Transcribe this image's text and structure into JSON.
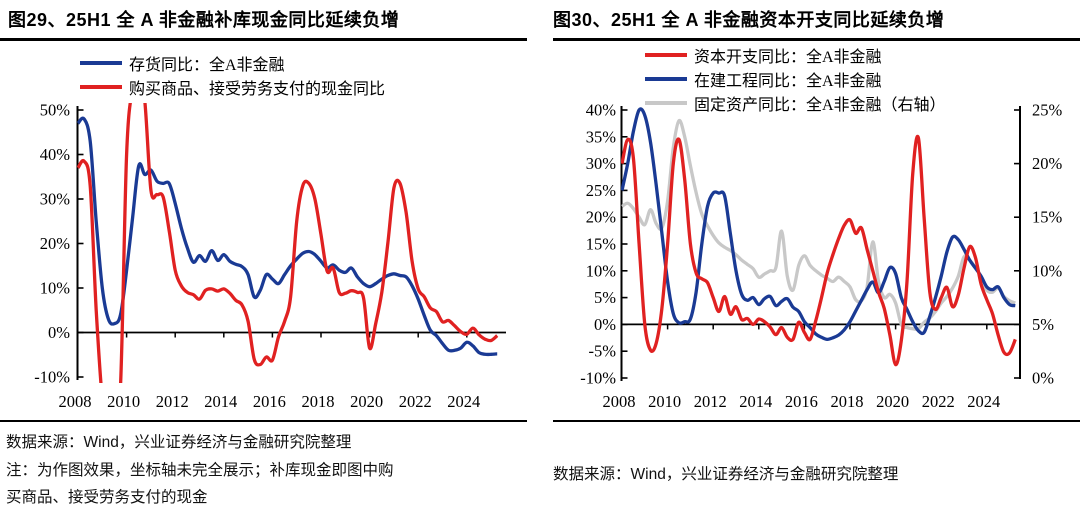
{
  "colors": {
    "blue": "#1a3a94",
    "red": "#e02121",
    "gray": "#c8c8c8",
    "axis": "#000000"
  },
  "panels": [
    {
      "title": "图29、25H1 全 A 非金融补库现金同比延续负增",
      "source_note": "数据来源：Wind，兴业证券经济与金融研究院整理",
      "note_lines": [
        "注：为作图效果，坐标轴未完全展示；补库现金即图中购",
        "买商品、接受劳务支付的现金"
      ]
    },
    {
      "title": "图30、25H1 全 A 非金融资本开支同比延续负增",
      "source_note": "数据来源：Wind，兴业证券经济与金融研究院整理",
      "note_lines": []
    }
  ],
  "chart_data": [
    {
      "type": "line",
      "title": "25H1 全 A 非金融补库现金同比延续负增",
      "x_start": 2008.0,
      "x_step": 0.25,
      "ylim": [
        -10,
        50
      ],
      "ytick_values": [
        50,
        40,
        30,
        20,
        10,
        0,
        -10
      ],
      "ytick_labels": [
        "50%",
        "40%",
        "30%",
        "20%",
        "10%",
        "0%",
        "-10%"
      ],
      "xtick_values": [
        2008,
        2010,
        2012,
        2014,
        2016,
        2018,
        2020,
        2022,
        2024
      ],
      "xtick_labels": [
        "2008",
        "2010",
        "2012",
        "2014",
        "2016",
        "2018",
        "2020",
        "2022",
        "2024"
      ],
      "grid": false,
      "legend_position": "top",
      "note": "红线在2009年低于-10%、2010年高于50%，坐标轴未完全展示（被裁剪）",
      "series": [
        {
          "key": "inventory_yoy",
          "name": "存货同比：全A非金融",
          "color": "#1a3a94",
          "axis": "left",
          "values": [
            47,
            48,
            43,
            25,
            10,
            3,
            2,
            4,
            14,
            26,
            37.5,
            35.5,
            36.5,
            34,
            33.5,
            33.5,
            29,
            23.5,
            19,
            15.8,
            17.3,
            16,
            18.4,
            16.2,
            17.5,
            16,
            15.3,
            14.8,
            13,
            8,
            9.5,
            13,
            12,
            11,
            13,
            15,
            16.5,
            17.8,
            18.2,
            17.5,
            16,
            14.5,
            15.2,
            14,
            13.5,
            14.5,
            12.5,
            11,
            10.3,
            11,
            12,
            12.8,
            13.2,
            12.8,
            12.5,
            10.5,
            7.5,
            3.8,
            0.5,
            -0.7,
            -2.5,
            -4,
            -4,
            -3.5,
            -2.2,
            -3,
            -4.5,
            -4.9,
            -4.9,
            -4.8
          ]
        },
        {
          "key": "cash_paid_yoy",
          "name": "购买商品、接受劳务支付的现金同比",
          "color": "#e02121",
          "axis": "left",
          "values": [
            37,
            38.5,
            33,
            5,
            -15,
            -22,
            -20,
            -12,
            40,
            55,
            58,
            52,
            32,
            31,
            30.5,
            23,
            14,
            10.5,
            9,
            8.5,
            7.5,
            9.5,
            9.8,
            9.3,
            9.8,
            8.8,
            7.2,
            6.2,
            2.5,
            -6,
            -7.2,
            -5.5,
            -6.2,
            -1,
            2.5,
            8,
            25,
            33,
            33.5,
            30,
            22,
            13.8,
            14.5,
            9,
            8.8,
            9.4,
            9,
            7.8,
            -3.5,
            2,
            9,
            20,
            32.5,
            33.5,
            27,
            16,
            9.8,
            8,
            5.5,
            4.7,
            2.4,
            2.7,
            1.5,
            0.2,
            -0.4,
            1,
            -0.5,
            -1.5,
            -1.8,
            -0.7
          ]
        }
      ]
    },
    {
      "type": "line",
      "title": "25H1 全 A 非金融资本开支同比延续负增",
      "x_start": 2008.0,
      "x_step": 0.25,
      "ylim_left": [
        -10,
        40
      ],
      "ylim_right": [
        0,
        25
      ],
      "ytick_values": [
        40,
        35,
        30,
        25,
        20,
        15,
        10,
        5,
        0,
        -5,
        -10
      ],
      "ytick_labels": [
        "40%",
        "35%",
        "30%",
        "25%",
        "20%",
        "15%",
        "10%",
        "5%",
        "0%",
        "-5%",
        "-10%"
      ],
      "ytick_right_values": [
        25,
        20,
        15,
        10,
        5,
        0
      ],
      "ytick_right_labels": [
        "25%",
        "20%",
        "15%",
        "10%",
        "5%",
        "0%"
      ],
      "xtick_values": [
        2008,
        2010,
        2012,
        2014,
        2016,
        2018,
        2020,
        2022,
        2024
      ],
      "xtick_labels": [
        "2008",
        "2010",
        "2012",
        "2014",
        "2016",
        "2018",
        "2020",
        "2022",
        "2024"
      ],
      "grid": false,
      "legend_position": "top",
      "series": [
        {
          "key": "fixed_assets_yoy",
          "name": "固定资产同比：全A非金融（右轴）",
          "color": "#c8c8c8",
          "axis": "right",
          "values": [
            16,
            16.3,
            15.8,
            15,
            14.3,
            15.7,
            14.4,
            14,
            16.5,
            21.5,
            24,
            22.5,
            19.8,
            17.3,
            15.3,
            14.2,
            13.3,
            12.6,
            12.2,
            11.9,
            11.5,
            11,
            10.6,
            10.2,
            9.4,
            9.7,
            10,
            10.3,
            13.7,
            9.5,
            8.2,
            10.5,
            11.4,
            10.5,
            10,
            9.6,
            9.3,
            9,
            9.4,
            9,
            8.5,
            7.3,
            7.2,
            8.5,
            12.7,
            9,
            7.5,
            7.8,
            7,
            5,
            4.7,
            4.6,
            4.6,
            5.2,
            5.6,
            6.2,
            7,
            7.6,
            8.4,
            9.5,
            11.3,
            11,
            10.3,
            9.4,
            8.2,
            8,
            8.4,
            7.6,
            7.2,
            7
          ]
        },
        {
          "key": "cip_yoy",
          "name": "在建工程同比：全A非金融",
          "color": "#1a3a94",
          "axis": "left",
          "values": [
            25,
            30,
            36,
            40,
            39,
            34,
            26,
            17,
            8,
            2,
            0.3,
            0.5,
            1,
            6,
            15,
            22,
            24.5,
            24.5,
            24,
            17,
            10,
            5.6,
            4.5,
            5,
            3.7,
            4.8,
            5.2,
            3.5,
            4.3,
            4.8,
            3.2,
            2.4,
            0.5,
            -0.6,
            -1.8,
            -2.4,
            -2.8,
            -2.5,
            -2,
            -1,
            0.5,
            2.5,
            4.5,
            6.5,
            7.9,
            5.9,
            8,
            10.6,
            9.5,
            5,
            2.8,
            0.5,
            -1.2,
            -1.5,
            1.5,
            5,
            9,
            13.5,
            16.3,
            15.8,
            14,
            12,
            10.5,
            9,
            7,
            6.5,
            7,
            5,
            3.7,
            3.5
          ]
        },
        {
          "key": "capex_yoy",
          "name": "资本开支同比：全A非金融",
          "color": "#e02121",
          "axis": "left",
          "values": [
            30,
            34.5,
            31,
            15,
            0,
            -4.8,
            -3.5,
            3,
            15,
            30,
            34.5,
            27,
            15,
            9.6,
            8.5,
            7.8,
            5,
            2.4,
            5.2,
            1.9,
            3.3,
            0.9,
            1.1,
            0,
            1,
            0.5,
            -0.5,
            -1.9,
            -0.6,
            -2.4,
            -2.8,
            0.4,
            -1.5,
            -2.8,
            0.7,
            5,
            9.6,
            13,
            16,
            18.5,
            19.5,
            17,
            18,
            14,
            10,
            6,
            3,
            -2,
            -7.5,
            -3,
            8,
            28,
            34.8,
            20,
            6,
            2.8,
            5,
            6.9,
            3.3,
            5.5,
            10.5,
            14.5,
            12.5,
            7.5,
            4.6,
            2,
            -2,
            -5.2,
            -5.3,
            -2.8
          ]
        }
      ]
    }
  ]
}
